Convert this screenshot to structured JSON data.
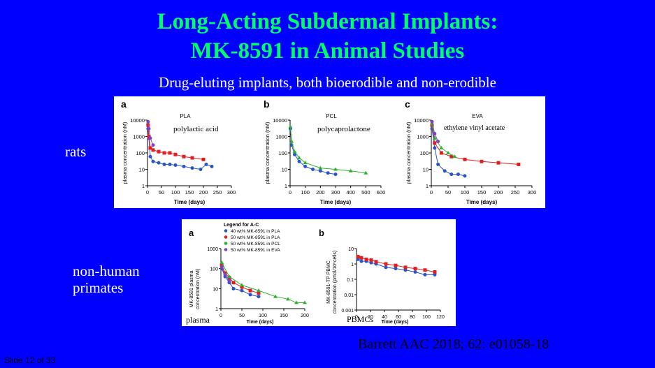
{
  "slide": {
    "title_line1": "Long-Acting Subdermal Implants:",
    "title_line2": "MK-8591 in Animal Studies",
    "subtitle": "Drug-eluting implants, both bioerodible and non-erodible",
    "label_rats": "rats",
    "label_nhp_line1": "non-human",
    "label_nhp_line2": "primates",
    "overlay_pla": "polylactic acid",
    "overlay_pcl": "polycaprolactone",
    "overlay_eva": "ethylene vinyl acetate",
    "overlay_plasma": "plasma",
    "overlay_pbmcs": "PBMCs",
    "citation": "Barrett AAC 2018; 62: e01058-18",
    "slide_number": "Slide 12 of 33"
  },
  "rat_figure": {
    "panels": [
      {
        "letter": "a",
        "title": "PLA"
      },
      {
        "letter": "b",
        "title": "PCL"
      },
      {
        "letter": "c",
        "title": "EVA"
      }
    ],
    "ylabel": "plasma concentration (nM)",
    "xlabel": "Time (days)",
    "yticks": [
      "10000",
      "1000",
      "100",
      "10",
      "1"
    ]
  },
  "nhp_figure": {
    "legend_title": "Legend for A-C",
    "legend": [
      {
        "label": "40 wt% MK-8591 in  PLA",
        "color": "#2a55c8"
      },
      {
        "label": "50 wt% MK-8591 in  PLA",
        "color": "#e02020"
      },
      {
        "label": "50 wt% MK-8591 in  PCL",
        "color": "#30b030"
      },
      {
        "label": "50 wt% MK-8591 in  EVA",
        "color": "#8040c0"
      }
    ],
    "panel_a": "a",
    "panel_b": "b",
    "ylabel_a1": "MK-8591 plasma",
    "ylabel_a2": "concentration (nM)",
    "ylabel_b1": "MK-8591-TP PBMC",
    "ylabel_b2": "concentration (pmol/10⁶cells)",
    "xlabel": "Time (days)",
    "a_yticks": [
      "1000",
      "100",
      "10",
      "1"
    ],
    "a_xticks": [
      "0",
      "50",
      "100",
      "150",
      "200"
    ],
    "b_yticks": [
      "10",
      "1",
      "0.1",
      "0.01",
      "0.001"
    ],
    "b_xticks": [
      "0",
      "20",
      "40",
      "60",
      "80",
      "100",
      "120"
    ]
  },
  "chart_data": [
    {
      "type": "scatter",
      "title": "PLA",
      "xlabel": "Time (days)",
      "ylabel": "plasma concentration (nM)",
      "xlim": [
        0,
        300
      ],
      "ylim_log10": [
        0,
        4
      ],
      "series": [
        {
          "name": "40 wt% MK-8591 in PLA",
          "x": [
            2,
            5,
            10,
            20,
            40,
            60,
            80,
            100,
            130,
            160,
            190,
            210,
            230
          ],
          "y": [
            3000,
            800,
            60,
            30,
            25,
            20,
            20,
            18,
            15,
            12,
            10,
            20,
            15
          ]
        },
        {
          "name": "50 wt% MK-8591 in PLA",
          "x": [
            2,
            5,
            10,
            20,
            40,
            60,
            80,
            100,
            130,
            160,
            200
          ],
          "y": [
            5000,
            1000,
            200,
            150,
            120,
            100,
            100,
            80,
            60,
            50,
            40
          ]
        },
        {
          "name": "50 wt% MK-8591 in EVA",
          "x": [
            2,
            5,
            10,
            20
          ],
          "y": [
            8000,
            3000,
            800,
            300
          ]
        }
      ]
    },
    {
      "type": "scatter",
      "title": "PCL",
      "xlabel": "Time (days)",
      "ylabel": "plasma concentration (nM)",
      "xlim": [
        0,
        600
      ],
      "ylim_log10": [
        0,
        4
      ],
      "series": [
        {
          "name": "40 wt% MK-8591 in PLA",
          "x": [
            2,
            10,
            30,
            60,
            100,
            150,
            200,
            250,
            300
          ],
          "y": [
            3000,
            300,
            80,
            30,
            15,
            10,
            8,
            6,
            5
          ]
        },
        {
          "name": "50 wt% MK-8591 in PCL",
          "x": [
            2,
            10,
            30,
            60,
            100,
            200,
            300,
            400,
            500
          ],
          "y": [
            4000,
            500,
            120,
            50,
            25,
            12,
            10,
            8,
            6
          ]
        }
      ]
    },
    {
      "type": "scatter",
      "title": "EVA",
      "xlabel": "Time (days)",
      "ylabel": "plasma concentration (nM)",
      "xlim": [
        0,
        300
      ],
      "ylim_log10": [
        0,
        4
      ],
      "series": [
        {
          "name": "40 wt% MK-8591 in PLA",
          "x": [
            2,
            10,
            20,
            40,
            60,
            80,
            100
          ],
          "y": [
            3000,
            200,
            20,
            8,
            5,
            5,
            4
          ]
        },
        {
          "name": "50 wt% MK-8591 in PLA",
          "x": [
            2,
            10,
            30,
            60,
            100,
            150,
            200,
            260
          ],
          "y": [
            5000,
            400,
            100,
            60,
            40,
            30,
            25,
            20
          ]
        },
        {
          "name": "50 wt% MK-8591 in PCL",
          "x": [
            2,
            10,
            30,
            50,
            70
          ],
          "y": [
            6000,
            800,
            200,
            100,
            60
          ]
        },
        {
          "name": "50 wt% MK-8591 in EVA",
          "x": [
            2,
            10,
            20
          ],
          "y": [
            8000,
            1500,
            500
          ]
        }
      ]
    },
    {
      "type": "scatter",
      "title": "",
      "xlabel": "Time (days)",
      "ylabel": "MK-8591 plasma concentration (nM)",
      "xlim": [
        0,
        200
      ],
      "ylim_log10": [
        0,
        3
      ],
      "series": [
        {
          "name": "40 wt% MK-8591 in PLA",
          "x": [
            2,
            10,
            20,
            30,
            50,
            70,
            90
          ],
          "y": [
            100,
            40,
            20,
            10,
            8,
            5,
            4
          ]
        },
        {
          "name": "50 wt% MK-8591 in PLA",
          "x": [
            2,
            10,
            20,
            30,
            50,
            70,
            90
          ],
          "y": [
            150,
            60,
            35,
            20,
            12,
            8,
            6
          ]
        },
        {
          "name": "50 wt% MK-8591 in PCL",
          "x": [
            2,
            20,
            50,
            90,
            130,
            160,
            180,
            200
          ],
          "y": [
            200,
            40,
            15,
            8,
            4,
            3,
            2,
            2
          ]
        },
        {
          "name": "50 wt% MK-8591 in EVA",
          "x": [
            2,
            10,
            20
          ],
          "y": [
            120,
            50,
            25
          ]
        }
      ]
    },
    {
      "type": "scatter",
      "title": "",
      "xlabel": "Time (days)",
      "ylabel": "MK-8591-TP PBMC concentration (pmol/10⁶cells)",
      "xlim": [
        0,
        120
      ],
      "ylim_log10": [
        -3,
        1
      ],
      "series": [
        {
          "name": "40 wt% MK-8591 in PLA",
          "x": [
            2,
            7,
            14,
            21,
            28,
            42,
            56,
            70,
            84,
            98,
            112
          ],
          "y": [
            2,
            1.5,
            1.5,
            1.2,
            1,
            0.6,
            0.5,
            0.4,
            0.3,
            0.2,
            0.2
          ]
        },
        {
          "name": "50 wt% MK-8591 in PLA",
          "x": [
            2,
            7,
            14,
            21,
            28,
            42,
            56,
            70,
            84,
            98,
            112
          ],
          "y": [
            3,
            2.5,
            2,
            1.8,
            1.4,
            1,
            0.8,
            0.6,
            0.5,
            0.4,
            0.3
          ]
        }
      ]
    }
  ]
}
